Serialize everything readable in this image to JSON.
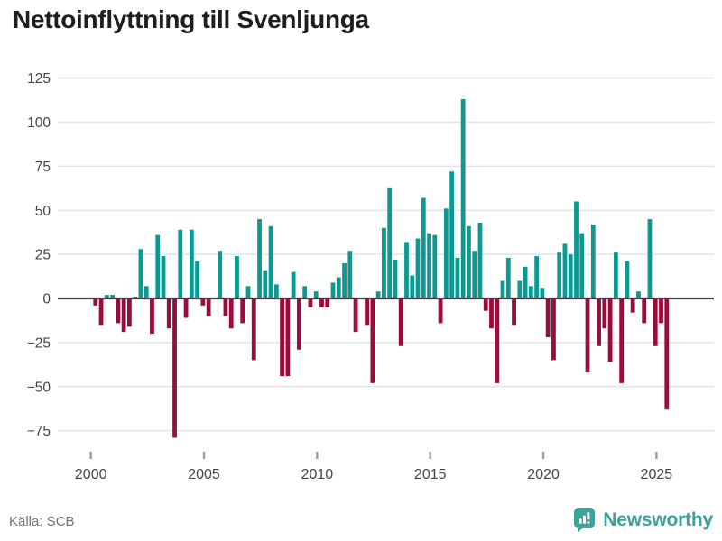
{
  "title": "Nettoinflyttning till Svenljunga",
  "source": "Källa: SCB",
  "logo_text": "Newsworthy",
  "colors": {
    "positive_bar": "#0a9a92",
    "negative_bar": "#990d3e",
    "gridline": "#e4e4e7",
    "zero_line": "#3d3d46",
    "axis_text": "#44444c",
    "tick_mark": "#9a9aa2",
    "title_text": "#1e1e22",
    "source_text": "#71717b",
    "logo_teal": "#3ba39a"
  },
  "chart_data": {
    "type": "bar",
    "title": "Nettoinflyttning till Svenljunga",
    "series_name": "Nettoinflyttning (personer per kvartal)",
    "frequency": "quarterly",
    "start_quarter": "2000-Q1",
    "end_quarter": "2025-Q2",
    "xlabel": "",
    "ylabel": "",
    "x_tick_years": [
      2000,
      2005,
      2010,
      2015,
      2020,
      2025
    ],
    "y_ticks": [
      125,
      100,
      75,
      50,
      25,
      0,
      -25,
      -50,
      -75
    ],
    "ylim": [
      -86,
      131
    ],
    "grid": true,
    "legend": false,
    "values": [
      -4,
      -15,
      2,
      2,
      -14,
      -19,
      -16,
      1,
      28,
      7,
      -20,
      36,
      24,
      -17,
      -79,
      39,
      -11,
      39,
      21,
      -4,
      -10,
      0,
      27,
      -10,
      -17,
      24,
      -14,
      7,
      -35,
      45,
      16,
      41,
      8,
      -44,
      -44,
      15,
      -29,
      7,
      -5,
      4,
      -5,
      -5,
      9,
      12,
      20,
      27,
      -19,
      0,
      -15,
      -48,
      4,
      40,
      63,
      22,
      -27,
      32,
      13,
      34,
      57,
      37,
      36,
      -14,
      51,
      72,
      23,
      113,
      41,
      27,
      43,
      -7,
      -17,
      -48,
      10,
      23,
      -15,
      10,
      18,
      7,
      24,
      6,
      -22,
      -35,
      26,
      31,
      25,
      55,
      37,
      -42,
      42,
      -27,
      -17,
      -36,
      26,
      -48,
      21,
      -8,
      4,
      -14,
      45,
      -27,
      -14,
      -63
    ]
  }
}
